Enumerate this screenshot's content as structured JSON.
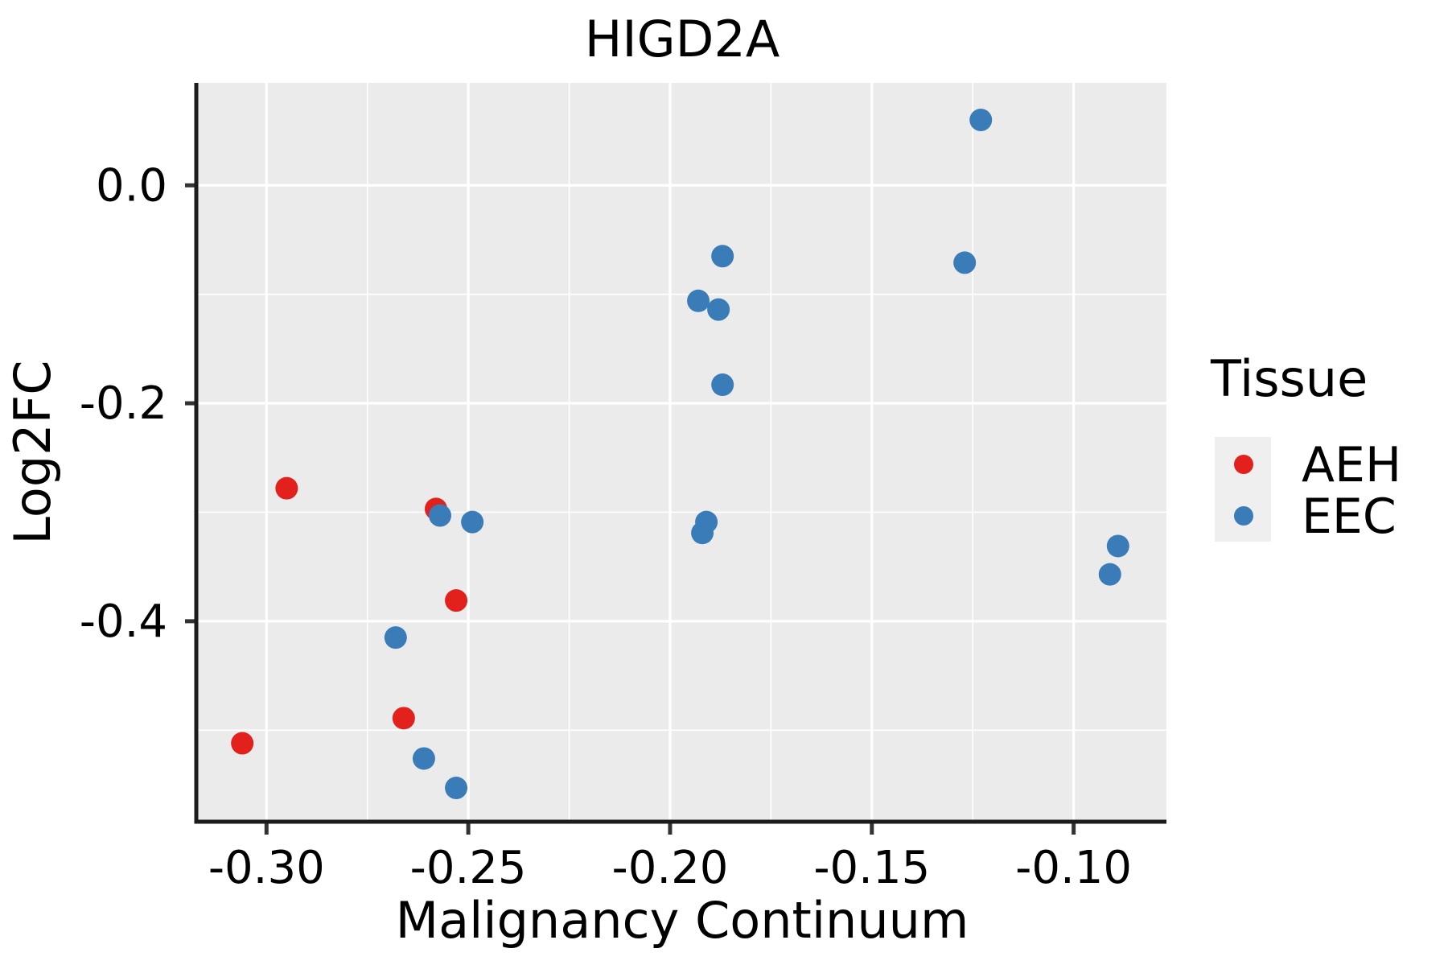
{
  "figure": {
    "title": "HIGD2A",
    "x_axis": {
      "label": "Malignancy Continuum",
      "tick_labels": [
        "-0.30",
        "-0.25",
        "-0.20",
        "-0.15",
        "-0.10"
      ]
    },
    "y_axis": {
      "label": "Log2FC",
      "tick_labels": [
        "0.0",
        "-0.2",
        "-0.4"
      ]
    },
    "legend": {
      "title": "Tissue",
      "entries": [
        {
          "label": "AEH",
          "color": "#e2211c"
        },
        {
          "label": "EEC",
          "color": "#3a7cb8"
        }
      ]
    }
  },
  "colors": {
    "panel_bg": "#ebebeb",
    "grid": "#ffffff",
    "axis_line": "#1c1c1c",
    "tick_mark": "#333333",
    "text": "#000000",
    "aeh_red": "#e2211c",
    "eec_blue": "#3a7cb8",
    "legend_key_bg": "#efefef"
  },
  "chart_data": {
    "type": "scatter",
    "title": "HIGD2A",
    "xlabel": "Malignancy Continuum",
    "ylabel": "Log2FC",
    "xlim": [
      -0.317,
      -0.077
    ],
    "ylim": [
      -0.584,
      0.094
    ],
    "x_ticks": [
      -0.3,
      -0.25,
      -0.2,
      -0.15,
      -0.1
    ],
    "x_tick_labels": [
      "-0.30",
      "-0.25",
      "-0.20",
      "-0.15",
      "-0.10"
    ],
    "x_minor_ticks": [
      -0.275,
      -0.225,
      -0.175,
      -0.125
    ],
    "y_ticks": [
      0.0,
      -0.2,
      -0.4
    ],
    "y_tick_labels": [
      "0.0",
      "-0.2",
      "-0.4"
    ],
    "y_minor_ticks": [
      -0.5,
      -0.3,
      -0.1
    ],
    "grid": "white major+minor gridlines on gray panel",
    "legend_title": "Tissue",
    "legend_position": "right",
    "point_radius_px": 14,
    "series": [
      {
        "name": "AEH",
        "color": "#e2211c",
        "points": [
          [
            -0.295,
            -0.278
          ],
          [
            -0.258,
            -0.297
          ],
          [
            -0.253,
            -0.381
          ],
          [
            -0.266,
            -0.489
          ],
          [
            -0.306,
            -0.512
          ]
        ]
      },
      {
        "name": "EEC",
        "color": "#3a7cb8",
        "points": [
          [
            -0.257,
            -0.303
          ],
          [
            -0.249,
            -0.309
          ],
          [
            -0.268,
            -0.415
          ],
          [
            -0.261,
            -0.526
          ],
          [
            -0.253,
            -0.553
          ],
          [
            -0.187,
            -0.065
          ],
          [
            -0.193,
            -0.106
          ],
          [
            -0.188,
            -0.114
          ],
          [
            -0.187,
            -0.183
          ],
          [
            -0.191,
            -0.309
          ],
          [
            -0.192,
            -0.319
          ],
          [
            -0.123,
            0.06
          ],
          [
            -0.127,
            -0.071
          ],
          [
            -0.089,
            -0.331
          ],
          [
            -0.091,
            -0.357
          ]
        ]
      }
    ]
  }
}
